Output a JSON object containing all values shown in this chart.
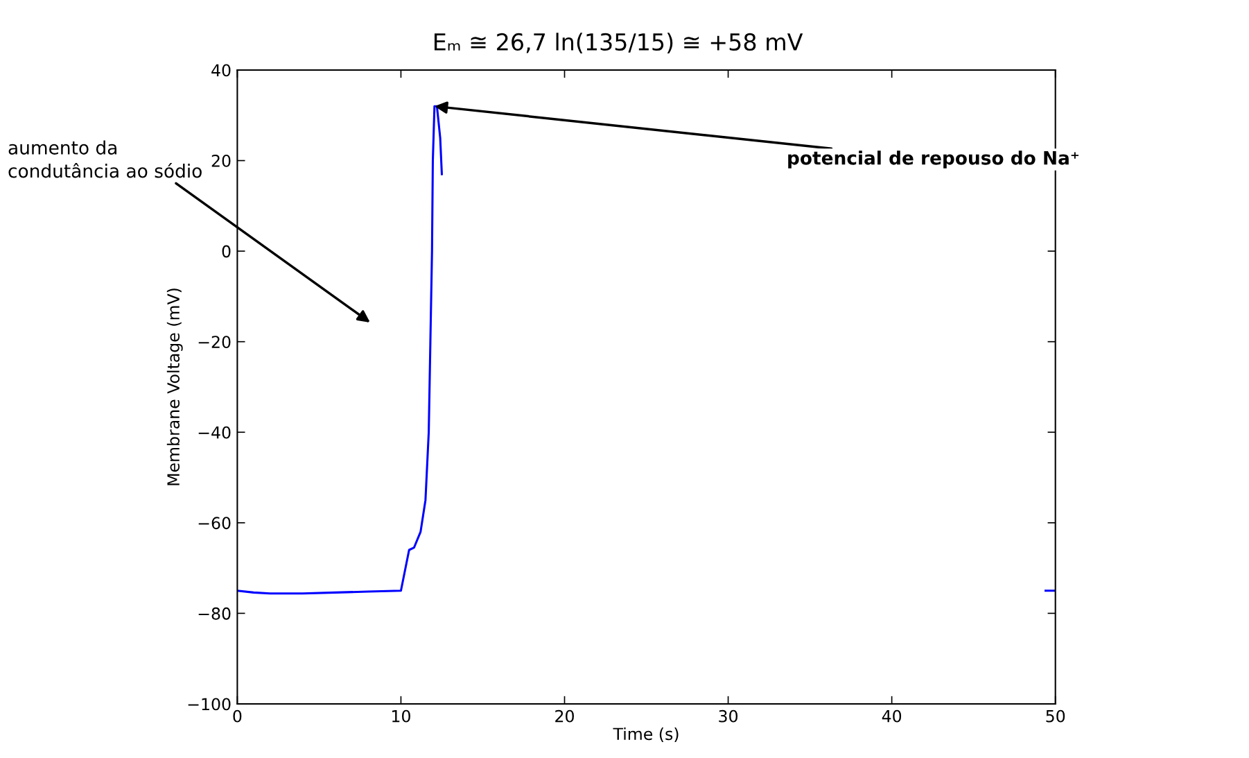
{
  "chart_data": {
    "type": "line",
    "xlabel": "Time (s)",
    "ylabel": "Membrane Voltage (mV)",
    "xlim": [
      0,
      50
    ],
    "ylim": [
      -100,
      40
    ],
    "xticks": [
      0,
      10,
      20,
      30,
      40,
      50
    ],
    "yticks": [
      {
        "value": -100,
        "label": "−100"
      },
      {
        "value": -80,
        "label": "−80"
      },
      {
        "value": -60,
        "label": "−60"
      },
      {
        "value": -40,
        "label": "−40"
      },
      {
        "value": -20,
        "label": "−20"
      },
      0,
      20,
      40
    ],
    "grid": false,
    "legend": false,
    "marker": "none",
    "line_style": "solid",
    "series": [
      {
        "color": "#0000ff",
        "x": [
          0,
          1,
          2,
          4,
          6,
          8,
          10,
          10.5,
          10.8,
          11.2,
          11.5,
          11.7,
          11.8,
          11.9,
          11.95,
          12.05,
          12.2,
          12.4,
          12.5,
          13,
          49.4,
          50
        ],
        "values": [
          -75,
          -75.4,
          -75.6,
          -75.6,
          -75.4,
          -75.2,
          -75,
          -66,
          -65.5,
          -62,
          -55,
          -40,
          -20,
          0,
          20,
          32,
          32,
          25,
          17,
          null,
          -75,
          -75
        ]
      }
    ],
    "annotations": [
      "Eₘ ≅ 26,7 ln(135/15) ≅ +58 mV",
      {
        "text": "potencial de repouso do Na⁺",
        "x": 12.05,
        "y": 32
      },
      "aumento da\ncondutância ao sódio"
    ]
  }
}
